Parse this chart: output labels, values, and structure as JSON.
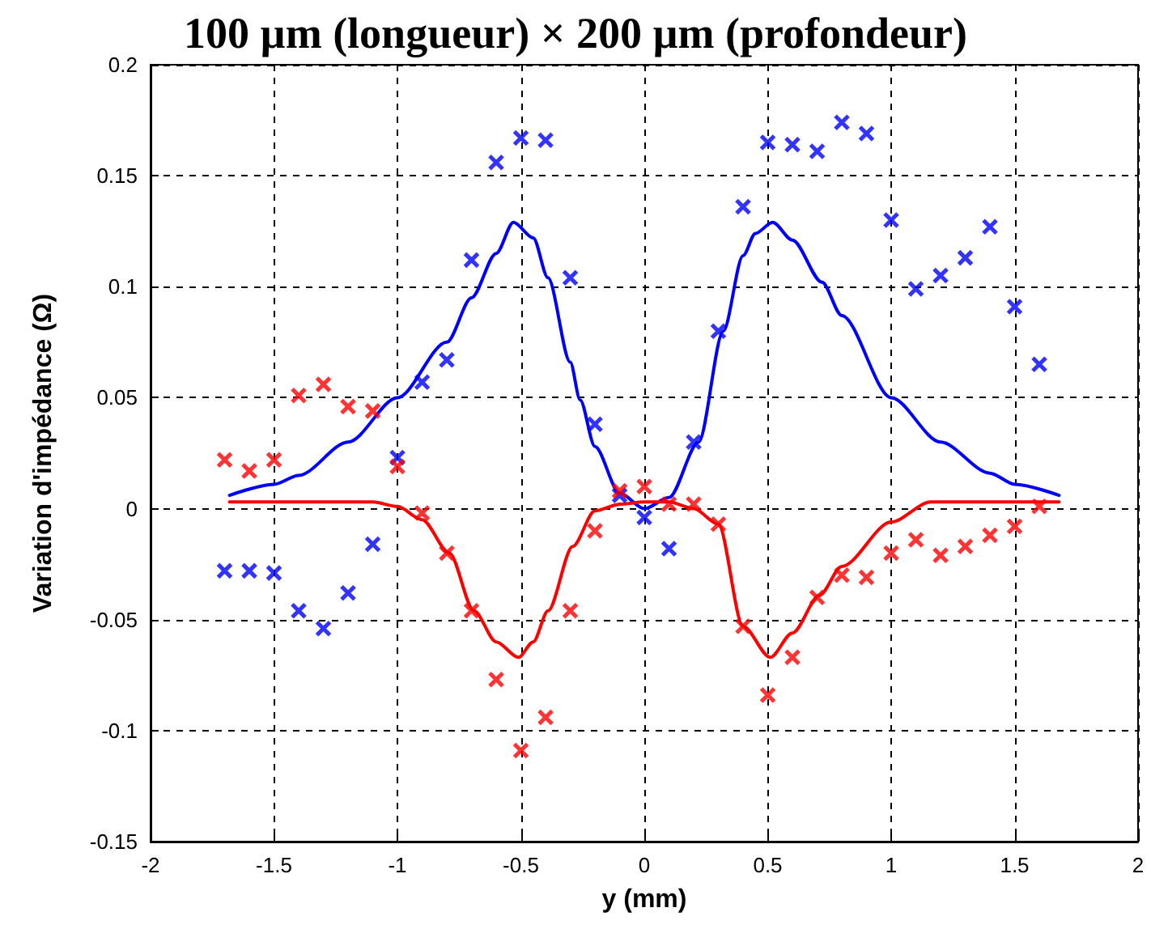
{
  "chart_data": {
    "type": "scatter",
    "title": "100 µm (longueur) × 200 µm (profondeur)",
    "xlabel": "y (mm)",
    "ylabel": "Variation d'impédance (Ω)",
    "xlim": [
      -2,
      2
    ],
    "xticks": [
      -2,
      -1.5,
      -1,
      -0.5,
      0,
      0.5,
      1,
      1.5,
      2
    ],
    "ylim": [
      -0.15,
      0.2
    ],
    "yticks": [
      -0.15,
      -0.1,
      -0.05,
      0,
      0.05,
      0.1,
      0.15,
      0.2
    ],
    "grid": true,
    "series": [
      {
        "marker": "cross",
        "color": "#0000ff",
        "x": [
          -1.7,
          -1.6,
          -1.5,
          -1.4,
          -1.3,
          -1.2,
          -1.1,
          -1.0,
          -0.9,
          -0.8,
          -0.7,
          -0.6,
          -0.5,
          -0.4,
          -0.3,
          -0.2,
          -0.1,
          0,
          0.1,
          0.2,
          0.3,
          0.4,
          0.5,
          0.6,
          0.7,
          0.8,
          0.9,
          1.0,
          1.1,
          1.2,
          1.3,
          1.4,
          1.5,
          1.6
        ],
        "values": [
          -0.028,
          -0.028,
          -0.029,
          -0.046,
          -0.054,
          -0.038,
          -0.016,
          0.023,
          0.057,
          0.067,
          0.112,
          0.156,
          0.167,
          0.166,
          0.104,
          0.038,
          0.006,
          -0.004,
          -0.018,
          0.03,
          0.08,
          0.136,
          0.165,
          0.164,
          0.161,
          0.174,
          0.169,
          0.13,
          0.099,
          0.105,
          0.113,
          0.127,
          0.091,
          0.065
        ]
      },
      {
        "marker": "cross",
        "color": "#ff0000",
        "x": [
          -1.7,
          -1.6,
          -1.5,
          -1.4,
          -1.3,
          -1.2,
          -1.1,
          -1.0,
          -0.9,
          -0.8,
          -0.7,
          -0.6,
          -0.5,
          -0.4,
          -0.3,
          -0.2,
          -0.1,
          0,
          0.1,
          0.2,
          0.3,
          0.4,
          0.5,
          0.6,
          0.7,
          0.8,
          0.9,
          1.0,
          1.1,
          1.2,
          1.3,
          1.4,
          1.5,
          1.6
        ],
        "values": [
          0.022,
          0.017,
          0.022,
          0.051,
          0.056,
          0.046,
          0.044,
          0.019,
          -0.002,
          -0.02,
          -0.046,
          -0.077,
          -0.109,
          -0.094,
          -0.046,
          -0.01,
          0.008,
          0.01,
          0.002,
          0.002,
          -0.007,
          -0.053,
          -0.084,
          -0.067,
          -0.04,
          -0.03,
          -0.031,
          -0.02,
          -0.014,
          -0.021,
          -0.017,
          -0.012,
          -0.008,
          0.001
        ]
      },
      {
        "type": "line",
        "marker": "none",
        "line_style": "solid",
        "color": "#0000ff",
        "x": [
          -1.68,
          -1.5,
          -1.4,
          -1.2,
          -1.0,
          -0.8,
          -0.7,
          -0.6,
          -0.53,
          -0.45,
          -0.39,
          -0.3,
          -0.26,
          -0.2,
          -0.1,
          0,
          0.1,
          0.22,
          0.32,
          0.4,
          0.45,
          0.52,
          0.6,
          0.72,
          0.8,
          1.0,
          1.2,
          1.4,
          1.5,
          1.68
        ],
        "values": [
          0.006,
          0.011,
          0.015,
          0.03,
          0.05,
          0.075,
          0.095,
          0.115,
          0.129,
          0.122,
          0.104,
          0.066,
          0.049,
          0.028,
          0.007,
          0,
          0.005,
          0.03,
          0.08,
          0.114,
          0.124,
          0.129,
          0.121,
          0.102,
          0.087,
          0.05,
          0.03,
          0.016,
          0.011,
          0.006
        ]
      },
      {
        "type": "line",
        "marker": "none",
        "line_style": "solid",
        "color": "#ff0000",
        "x": [
          -1.68,
          -1.1,
          -1.0,
          -0.9,
          -0.79,
          -0.69,
          -0.6,
          -0.51,
          -0.45,
          -0.39,
          -0.29,
          -0.2,
          -0.1,
          0,
          0.1,
          0.2,
          0.3,
          0.4,
          0.51,
          0.6,
          0.71,
          0.8,
          1.0,
          1.16,
          1.68
        ],
        "values": [
          0.003,
          0.003,
          0.001,
          -0.005,
          -0.02,
          -0.046,
          -0.06,
          -0.067,
          -0.06,
          -0.046,
          -0.017,
          -0.001,
          0.002,
          0.003,
          0.003,
          0.0,
          -0.007,
          -0.053,
          -0.067,
          -0.056,
          -0.039,
          -0.026,
          -0.006,
          0.003,
          0.003
        ]
      }
    ]
  }
}
